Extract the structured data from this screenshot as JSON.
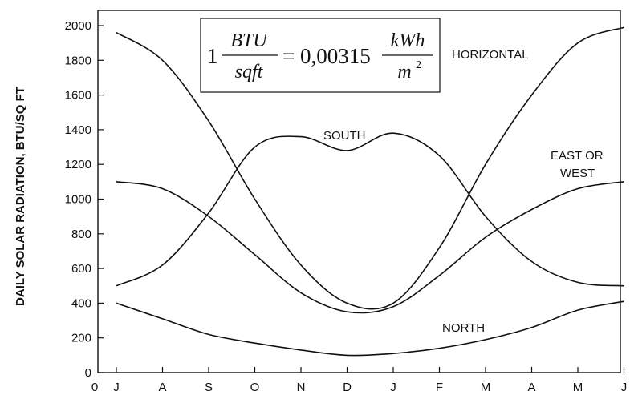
{
  "chart_data": {
    "type": "line",
    "ylabel": "DAILY SOLAR RADIATION, BTU/SQ FT",
    "xlabel": "",
    "x_origin_label": "0",
    "categories": [
      "J",
      "A",
      "S",
      "O",
      "N",
      "D",
      "J",
      "F",
      "M",
      "A",
      "M",
      "J"
    ],
    "ylim": [
      0,
      2000
    ],
    "yticks": [
      0,
      200,
      400,
      600,
      800,
      1000,
      1200,
      1400,
      1600,
      1800,
      2000
    ],
    "grid": false,
    "series": [
      {
        "name": "HORIZONTAL",
        "x": [
          0,
          1,
          2,
          3,
          4,
          5,
          6,
          7,
          8,
          9,
          10,
          11
        ],
        "values": [
          1960,
          1800,
          1450,
          1000,
          620,
          400,
          400,
          720,
          1200,
          1600,
          1900,
          1990
        ]
      },
      {
        "name": "SOUTH",
        "x": [
          0,
          1,
          2,
          3,
          4,
          5,
          6,
          7,
          8,
          9,
          10,
          11
        ],
        "values": [
          500,
          620,
          920,
          1300,
          1360,
          1280,
          1380,
          1250,
          900,
          640,
          520,
          500
        ]
      },
      {
        "name": "EAST OR WEST",
        "x": [
          0,
          1,
          2,
          3,
          4,
          5,
          6,
          7,
          8,
          9,
          10,
          11
        ],
        "values": [
          1100,
          1060,
          900,
          680,
          460,
          350,
          380,
          560,
          780,
          940,
          1060,
          1100
        ]
      },
      {
        "name": "NORTH",
        "x": [
          0,
          1,
          2,
          3,
          4,
          5,
          6,
          7,
          8,
          9,
          10,
          11
        ],
        "values": [
          400,
          310,
          220,
          170,
          130,
          100,
          110,
          140,
          190,
          260,
          360,
          410
        ]
      }
    ],
    "series_labels": {
      "horizontal": "HORIZONTAL",
      "south": "SOUTH",
      "east_line1": "EAST OR",
      "east_line2": "WEST",
      "north": "NORTH"
    },
    "annotation": {
      "lead": "1",
      "num_left": "BTU",
      "den_left": "sqft",
      "equals": "= 0,00315",
      "num_right": "kWh",
      "den_right": "m",
      "den_right_exp": "2"
    }
  }
}
